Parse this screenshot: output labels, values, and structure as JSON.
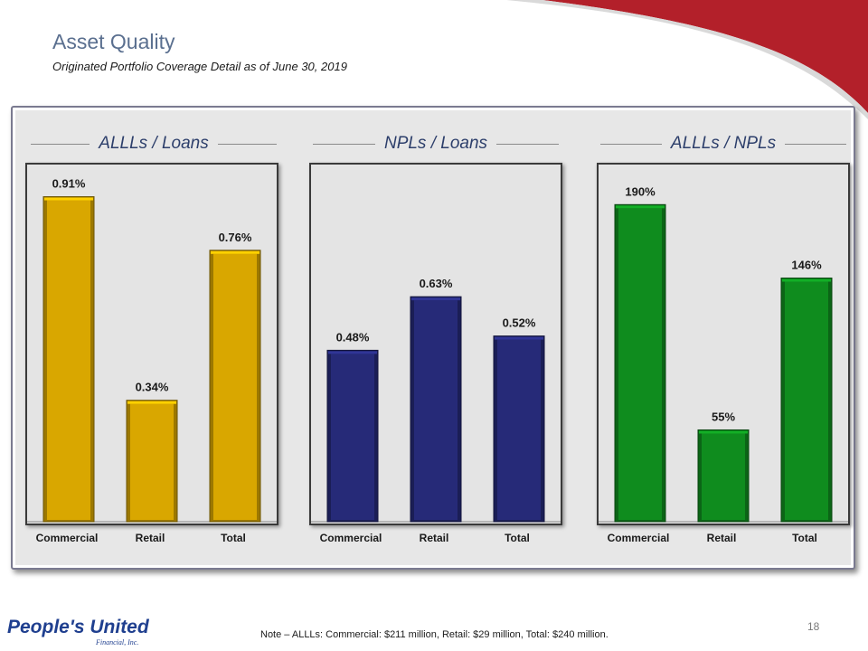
{
  "header": {
    "title": "Asset Quality",
    "subtitle": "Originated Portfolio Coverage Detail as of June 30, 2019"
  },
  "chart_data": [
    {
      "type": "bar",
      "title": "ALLLs / Loans",
      "categories": [
        "Commercial",
        "Retail",
        "Total"
      ],
      "values": [
        0.91,
        0.34,
        0.76
      ],
      "value_labels": [
        "0.91%",
        "0.34%",
        "0.76%"
      ],
      "unit": "%",
      "ylim": [
        0,
        1.0
      ],
      "color": "#d9a700",
      "grid": false
    },
    {
      "type": "bar",
      "title": "NPLs / Loans",
      "categories": [
        "Commercial",
        "Retail",
        "Total"
      ],
      "values": [
        0.48,
        0.63,
        0.52
      ],
      "value_labels": [
        "0.48%",
        "0.63%",
        "0.52%"
      ],
      "unit": "%",
      "ylim": [
        0,
        1.0
      ],
      "color": "#262a78",
      "grid": false
    },
    {
      "type": "bar",
      "title": "ALLLs / NPLs",
      "categories": [
        "Commercial",
        "Retail",
        "Total"
      ],
      "values": [
        190,
        55,
        146
      ],
      "value_labels": [
        "190%",
        "55%",
        "146%"
      ],
      "unit": "%",
      "ylim": [
        0,
        214
      ],
      "color": "#0f8c1e",
      "grid": false
    }
  ],
  "footer": {
    "note": "Note – ALLLs: Commercial: $211 million, Retail: $29 million, Total: $240 million.",
    "page_number": "18",
    "logo_text": "People's United",
    "logo_subtext": "Financial, Inc."
  },
  "colors": {
    "swoosh_red": "#b3202a",
    "title_blue": "#5a6f8f",
    "heading_blue": "#2d3f6b",
    "logo_blue": "#1f3f8f"
  }
}
